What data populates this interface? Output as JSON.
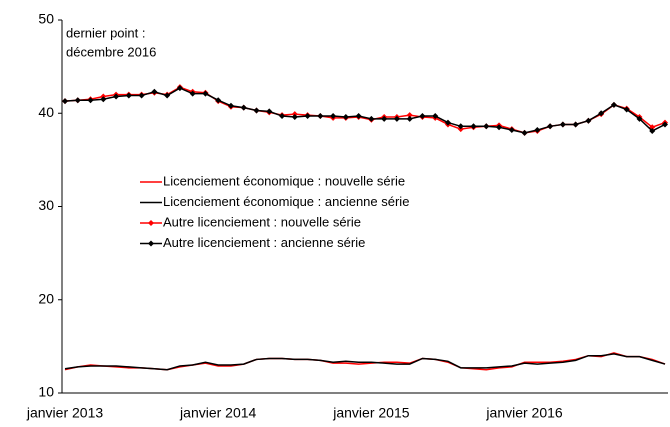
{
  "chart_data": {
    "type": "line",
    "annotation": [
      "dernier point :",
      "décembre 2016"
    ],
    "categories": [
      "janvier 2013",
      null,
      null,
      null,
      null,
      null,
      null,
      null,
      null,
      null,
      null,
      null,
      "janvier 2014",
      null,
      null,
      null,
      null,
      null,
      null,
      null,
      null,
      null,
      null,
      null,
      "janvier 2015",
      null,
      null,
      null,
      null,
      null,
      null,
      null,
      null,
      null,
      null,
      null,
      "janvier 2016",
      null,
      null,
      null,
      null,
      null,
      null,
      null,
      null,
      null,
      null,
      null
    ],
    "series": [
      {
        "name": "Licenciement économique : nouvelle série",
        "color": "#ff0000",
        "marker": false,
        "values": [
          12.5,
          12.8,
          13.0,
          12.9,
          12.8,
          12.7,
          12.7,
          12.6,
          12.5,
          12.8,
          13.0,
          13.2,
          12.9,
          12.9,
          13.1,
          13.6,
          13.7,
          13.7,
          13.6,
          13.6,
          13.5,
          13.2,
          13.2,
          13.1,
          13.2,
          13.3,
          13.3,
          13.2,
          13.7,
          13.6,
          13.3,
          12.7,
          12.6,
          12.5,
          12.7,
          12.8,
          13.3,
          13.3,
          13.3,
          13.4,
          13.6,
          14.0,
          13.9,
          14.3,
          13.9,
          13.9,
          13.6,
          13.1
        ]
      },
      {
        "name": "Licenciement économique : ancienne série",
        "color": "#000000",
        "marker": false,
        "values": [
          12.6,
          12.8,
          12.9,
          12.9,
          12.9,
          12.8,
          12.7,
          12.6,
          12.5,
          12.9,
          13.0,
          13.3,
          13.0,
          13.0,
          13.1,
          13.6,
          13.7,
          13.7,
          13.6,
          13.6,
          13.5,
          13.3,
          13.4,
          13.3,
          13.3,
          13.2,
          13.1,
          13.1,
          13.7,
          13.6,
          13.4,
          12.7,
          12.7,
          12.7,
          12.8,
          12.9,
          13.2,
          13.1,
          13.2,
          13.3,
          13.5,
          14.0,
          14.0,
          14.2,
          13.9,
          13.9,
          13.5,
          13.1
        ]
      },
      {
        "name": "Autre licenciement : nouvelle série",
        "color": "#ff0000",
        "marker": true,
        "values": [
          41.3,
          41.4,
          41.5,
          41.8,
          42.0,
          42.0,
          42.0,
          42.2,
          42.0,
          42.8,
          42.3,
          42.2,
          41.3,
          40.7,
          40.6,
          40.3,
          40.1,
          39.8,
          39.9,
          39.8,
          39.7,
          39.5,
          39.5,
          39.6,
          39.3,
          39.6,
          39.6,
          39.8,
          39.6,
          39.5,
          38.8,
          38.3,
          38.5,
          38.6,
          38.7,
          38.3,
          37.9,
          38.1,
          38.6,
          38.8,
          38.8,
          39.2,
          39.9,
          40.9,
          40.5,
          39.6,
          38.5,
          39.0
        ]
      },
      {
        "name": "Autre licenciement : ancienne série",
        "color": "#000000",
        "marker": true,
        "values": [
          41.3,
          41.4,
          41.4,
          41.5,
          41.8,
          41.9,
          41.9,
          42.3,
          41.9,
          42.7,
          42.1,
          42.1,
          41.4,
          40.8,
          40.6,
          40.3,
          40.2,
          39.7,
          39.6,
          39.7,
          39.7,
          39.7,
          39.6,
          39.7,
          39.4,
          39.4,
          39.4,
          39.4,
          39.7,
          39.7,
          39.0,
          38.6,
          38.6,
          38.6,
          38.5,
          38.2,
          37.9,
          38.2,
          38.6,
          38.8,
          38.8,
          39.2,
          40.0,
          40.9,
          40.4,
          39.4,
          38.1,
          38.8
        ]
      }
    ],
    "ylim": [
      10,
      50
    ],
    "yticks": [
      10,
      20,
      30,
      40,
      50
    ],
    "grid": false
  }
}
